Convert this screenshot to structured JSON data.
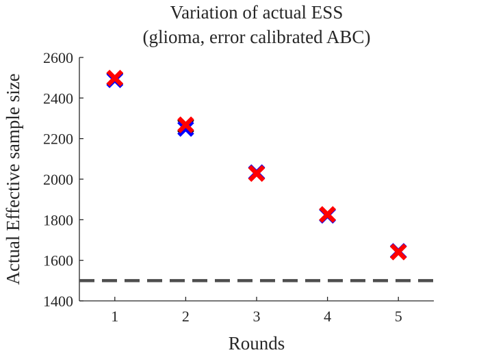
{
  "chart_data": {
    "type": "scatter",
    "title": [
      "Variation of actual ESS",
      "(glioma, error calibrated ABC)"
    ],
    "xlabel": "Rounds",
    "ylabel": "Actual Effective sample size",
    "xlim": [
      0.5,
      5.5
    ],
    "ylim": [
      1400,
      2600
    ],
    "xticks": [
      1,
      2,
      3,
      4,
      5
    ],
    "yticks": [
      1400,
      1600,
      1800,
      2000,
      2200,
      2400,
      2600
    ],
    "grid": false,
    "marker": "x",
    "series": [
      {
        "color": "#000000",
        "x": [
          1,
          2,
          3,
          4,
          5
        ],
        "y": [
          2495,
          2262,
          2030,
          1825,
          1642
        ]
      },
      {
        "color": "#0000ff",
        "x": [
          1,
          2,
          3,
          4,
          5
        ],
        "y": [
          2490,
          2250,
          2032,
          1822,
          1644
        ]
      },
      {
        "color": "#ff0000",
        "x": [
          1,
          2,
          3,
          4,
          5
        ],
        "y": [
          2498,
          2268,
          2028,
          1826,
          1641
        ]
      }
    ],
    "reference_line": {
      "y": 1500,
      "style": "dashed",
      "color": "#4d4d4d"
    }
  }
}
